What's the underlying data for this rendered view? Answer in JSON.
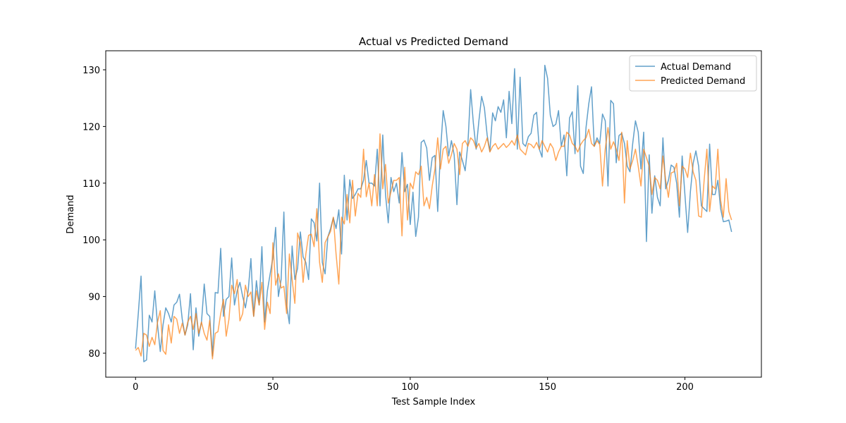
{
  "chart_data": {
    "type": "line",
    "title": "Actual vs Predicted Demand",
    "x_label": "Test Sample Index",
    "y_label": "Demand",
    "xlim": [
      -10.85,
      227.85
    ],
    "xticks": [
      0,
      50,
      100,
      150,
      200
    ],
    "ylim": [
      75.77,
      133.36
    ],
    "yticks": [
      80,
      90,
      100,
      110,
      120,
      130
    ],
    "legend": "upper right",
    "alpha": 0.7,
    "series": [
      {
        "name": "Actual Demand",
        "color": "#1f77b4",
        "values": [
          80.8,
          87,
          93.6,
          78.5,
          78.8,
          86.7,
          85.5,
          91,
          85,
          80.3,
          85,
          88,
          87,
          85.5,
          88.5,
          89,
          90.4,
          86,
          83.2,
          85,
          90.5,
          80.6,
          88,
          83,
          85.5,
          92.2,
          87,
          86.5,
          79.5,
          90.7,
          90.6,
          98.5,
          86.5,
          89.5,
          90,
          96.8,
          88.5,
          91,
          92.5,
          90,
          88,
          91,
          96.7,
          86.5,
          92.8,
          88.5,
          98.8,
          85.5,
          91,
          94,
          96.8,
          102.2,
          90,
          93,
          104.9,
          88.5,
          85.2,
          98.9,
          93,
          95,
          101.4,
          97,
          96,
          93,
          103.7,
          103,
          99.8,
          110,
          96,
          94,
          100.5,
          102,
          103.9,
          102,
          105.3,
          97.5,
          111.4,
          103.5,
          110.6,
          107.3,
          108,
          109,
          109,
          110.5,
          114,
          110,
          110,
          109.5,
          116,
          106,
          118.5,
          108,
          103,
          111,
          108.5,
          110,
          106.5,
          115.4,
          108.5,
          109.8,
          102.7,
          108.4,
          100.6,
          104,
          117.2,
          117.6,
          116.2,
          110.5,
          114.5,
          114.9,
          105,
          115.5,
          122.8,
          120,
          114.8,
          117.5,
          115,
          106.2,
          115.5,
          114,
          112.2,
          117,
          126.5,
          120.5,
          116,
          121,
          125.3,
          123.3,
          118.5,
          115.6,
          122.4,
          121,
          123.5,
          122.5,
          124.7,
          118,
          126.2,
          120.5,
          130.2,
          116,
          128.7,
          117,
          116.5,
          118.2,
          118.8,
          122,
          122.5,
          116,
          114.6,
          130.8,
          128.5,
          122,
          120,
          120.4,
          122.8,
          116.5,
          118.5,
          111.3,
          121.5,
          122.6,
          115.2,
          127.2,
          113,
          111.7,
          119.8,
          124,
          127,
          116.5,
          118,
          117,
          122.2,
          121,
          109.5,
          124.6,
          124,
          113.6,
          118.4,
          118.8,
          117,
          113,
          112,
          117,
          121,
          119,
          112.5,
          119,
          99.7,
          115,
          104.7,
          111.3,
          107.5,
          106,
          118,
          109,
          110.5,
          113.2,
          112.8,
          110,
          104,
          114.8,
          108,
          101.3,
          108.5,
          113.5,
          115.7,
          113,
          106,
          105.5,
          105,
          116.9,
          108,
          108,
          110.5,
          105.5,
          103.2,
          103.3,
          103.5,
          101.4
        ]
      },
      {
        "name": "Predicted Demand",
        "color": "#ff7f0e",
        "values": [
          80.5,
          81,
          79.5,
          83.5,
          83.2,
          81.2,
          82.8,
          81.5,
          85.5,
          87.5,
          80.5,
          79.8,
          85,
          81.8,
          86.5,
          86,
          83.5,
          85.3,
          83.2,
          85.5,
          86.5,
          84.2,
          87,
          83.5,
          85.5,
          83.5,
          82.3,
          85.8,
          79,
          83.5,
          83.8,
          87,
          89.5,
          83,
          86,
          92,
          90.5,
          93,
          85.7,
          87,
          92,
          90,
          90.8,
          86.5,
          91,
          88.5,
          92.5,
          84.2,
          89,
          87,
          99.5,
          92,
          94,
          91.5,
          91.8,
          87,
          97.5,
          93,
          88.8,
          101.2,
          99.5,
          92.5,
          97.5,
          100.8,
          101,
          98.8,
          105.5,
          96,
          92.5,
          99.5,
          100.5,
          101.5,
          104,
          97.5,
          92.2,
          104,
          102.8,
          108,
          103,
          110.5,
          104.2,
          108.2,
          107.5,
          116,
          107.6,
          110,
          106,
          111.5,
          106,
          118.7,
          109,
          113.3,
          106.5,
          108.5,
          110.5,
          110.5,
          111,
          100.7,
          112.8,
          103.5,
          110,
          109,
          112,
          111.5,
          113,
          106,
          107.5,
          105.5,
          109.5,
          112.5,
          118,
          112.5,
          116,
          116.5,
          113.5,
          115,
          117,
          116,
          111.5,
          117,
          117.5,
          116.5,
          118,
          117.5,
          116.2,
          117,
          115.5,
          116.5,
          118,
          115.5,
          116.5,
          117,
          116,
          116.5,
          117,
          116.3,
          116.8,
          117.5,
          116.7,
          118.5,
          116,
          115.5,
          115,
          117,
          116.8,
          116.2,
          117.2,
          116,
          117.5,
          116.5,
          115.5,
          117,
          116.2,
          114,
          115.5,
          116.5,
          116.5,
          119,
          118.5,
          117,
          116.5,
          115.5,
          116.8,
          117.5,
          118,
          119.5,
          117,
          116.5,
          117.5,
          116.8,
          109.5,
          116,
          119.8,
          116,
          117.3,
          116,
          114,
          119,
          106.5,
          117.5,
          112.5,
          114,
          116,
          113,
          109.5,
          116,
          114.5,
          113,
          108,
          111,
          110.5,
          109,
          114.8,
          110.5,
          107.5,
          111.8,
          112,
          113.5,
          106,
          113,
          112.5,
          111,
          115.3,
          112,
          110.5,
          104.2,
          104,
          110.5,
          116,
          105,
          109.5,
          109,
          116,
          107,
          104,
          110.8,
          105,
          103.5
        ]
      }
    ]
  }
}
